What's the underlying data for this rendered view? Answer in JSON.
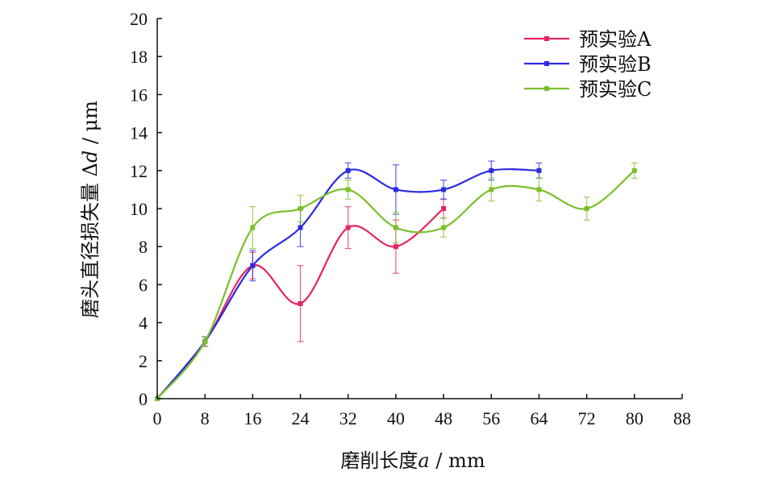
{
  "chart_data": {
    "type": "line",
    "title": "",
    "xlabel": {
      "main": "磨削长度",
      "var": "a",
      "unit": " / mm"
    },
    "ylabel": {
      "main": "磨头直径损失量 ",
      "delta": "Δ",
      "var": "d",
      "unit": " / μm"
    },
    "xlim": [
      0,
      88
    ],
    "ylim": [
      0,
      20
    ],
    "xticks": [
      0,
      8,
      16,
      24,
      32,
      40,
      48,
      56,
      64,
      72,
      80,
      88
    ],
    "yticks": [
      0,
      2,
      4,
      6,
      8,
      10,
      12,
      14,
      16,
      18,
      20
    ],
    "grid": false,
    "legend_position": "top-right",
    "series": [
      {
        "name": "预实验A",
        "color": "#e8245f",
        "x": [
          0,
          8,
          16,
          24,
          32,
          40,
          48
        ],
        "y": [
          0,
          3,
          7,
          5,
          9,
          8,
          10
        ],
        "err": [
          0,
          0.25,
          0.7,
          2,
          1.1,
          1.4,
          0.5
        ]
      },
      {
        "name": "预实验B",
        "color": "#2a2adf",
        "x": [
          0,
          8,
          16,
          24,
          32,
          40,
          48,
          56,
          64
        ],
        "y": [
          0,
          3,
          7,
          9,
          12,
          11,
          11,
          12,
          12
        ],
        "err": [
          0,
          0.25,
          0.8,
          1,
          0.4,
          1.3,
          0.5,
          0.5,
          0.4
        ]
      },
      {
        "name": "预实验C",
        "color": "#7cbf2a",
        "x": [
          0,
          8,
          16,
          24,
          32,
          40,
          48,
          56,
          64,
          72,
          80
        ],
        "y": [
          0,
          3,
          9,
          10,
          11,
          9,
          9,
          11,
          11,
          10,
          12
        ],
        "err": [
          0,
          0.25,
          1.1,
          0.7,
          0.5,
          0.8,
          0.5,
          0.6,
          0.6,
          0.6,
          0.4
        ]
      }
    ]
  }
}
